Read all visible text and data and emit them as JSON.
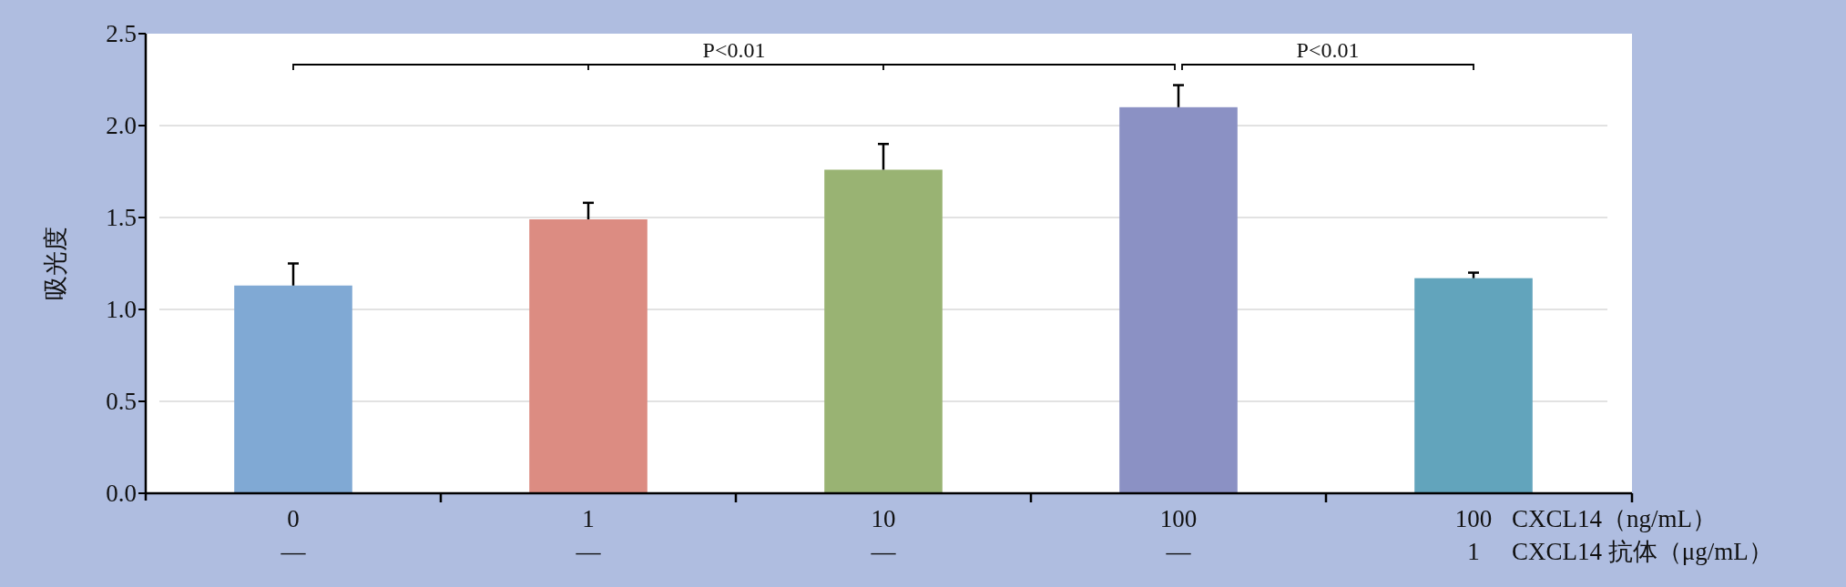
{
  "chart_data": {
    "type": "bar",
    "ylabel": "吸光度",
    "categories": [
      "0\n—",
      "1\n—",
      "10\n—",
      "100\n—",
      "100\n1"
    ],
    "values": [
      1.13,
      1.49,
      1.76,
      2.1,
      1.17
    ],
    "errors": [
      [
        1.13,
        1.25
      ],
      [
        1.49,
        1.58
      ],
      [
        1.76,
        1.9
      ],
      [
        2.1,
        2.22
      ],
      [
        1.17,
        1.2
      ]
    ],
    "colors": [
      "#80a9d4",
      "#dc8c82",
      "#99b373",
      "#8b91c4",
      "#62a4bc"
    ],
    "ylim": [
      0,
      2.5
    ],
    "yticks": [
      {
        "value": 0,
        "label": "0.0"
      },
      {
        "value": 0.5,
        "label": "0.5"
      },
      {
        "value": 1,
        "label": "1.0"
      },
      {
        "value": 1.5,
        "label": "1.5"
      },
      {
        "value": 2,
        "label": "2.0"
      },
      {
        "value": 2.5,
        "label": "2.5"
      }
    ],
    "grid": "y",
    "annotations": [
      "P<0.01",
      "P<0.01",
      "CXCL14（ng/mL）",
      "CXCL14 抗体（μg/mL）"
    ]
  }
}
